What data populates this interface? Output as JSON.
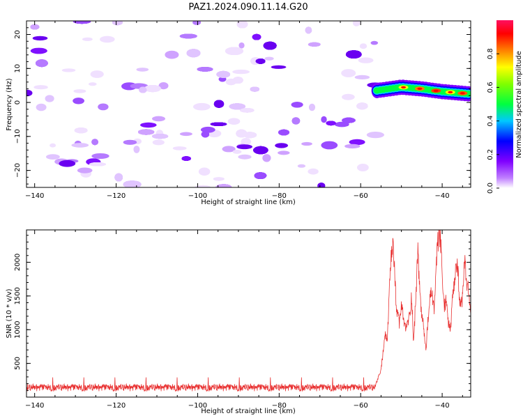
{
  "title": "PAZ1.2024.090.11.14.G20",
  "chart_data": [
    {
      "type": "heatmap",
      "xlabel": "Height of straight line (km)",
      "ylabel": "Frequency (Hz)",
      "xlim": [
        -142,
        -33
      ],
      "ylim": [
        -25,
        24
      ],
      "x_ticks": [
        -140,
        -120,
        -100,
        -80,
        -60,
        -40
      ],
      "y_ticks": [
        -20,
        -10,
        0,
        10,
        20
      ],
      "noise_region_x": [
        -142,
        -56
      ],
      "signal_track": {
        "x": [
          -56,
          -50,
          -45,
          -40,
          -35,
          -33
        ],
        "y": [
          3.5,
          4.5,
          4.0,
          3.2,
          2.7,
          2.5
        ]
      },
      "colorbar": {
        "label": "Normalized spectral amplitude",
        "range": [
          0.0,
          1.0
        ],
        "ticks": [
          0.0,
          0.2,
          0.4,
          0.6,
          0.8
        ],
        "colormap": [
          "#ffffff",
          "#8000ff",
          "#0000ff",
          "#00ffff",
          "#00ff00",
          "#ffff00",
          "#ff8000",
          "#ff0000",
          "#ff0080"
        ]
      }
    },
    {
      "type": "line",
      "xlabel": "Height of straight line (km)",
      "ylabel": "SNR (10 * v/v)",
      "xlim": [
        -142,
        -33
      ],
      "ylim": [
        0,
        2480
      ],
      "x_ticks": [
        -140,
        -120,
        -100,
        -80,
        -60,
        -40
      ],
      "y_ticks": [
        500,
        1000,
        1500,
        2000
      ],
      "line_color": "#e83030",
      "noise_floor": 140,
      "series": [
        {
          "x": [
            -142,
            -56.5,
            -55,
            -54,
            -53.5,
            -53,
            -52.5,
            -52,
            -51.5,
            -51,
            -50.5,
            -50,
            -49,
            -48,
            -47.5,
            -47,
            -46.5,
            -46,
            -45.5,
            -45,
            -44.5,
            -44,
            -43.5,
            -43,
            -42.5,
            -42,
            -41.5,
            -41,
            -40.5,
            -40,
            -39.5,
            -39,
            -38.5,
            -38,
            -37.5,
            -37,
            -36.5,
            -36,
            -35.5,
            -35,
            -34.5,
            -34,
            -33.5,
            -33
          ],
          "values": [
            140,
            150,
            400,
            950,
            800,
            1500,
            2050,
            2270,
            1600,
            1200,
            1100,
            1350,
            1000,
            1200,
            1500,
            800,
            1450,
            2150,
            1600,
            1200,
            1000,
            700,
            1100,
            1450,
            1600,
            1250,
            1900,
            2300,
            2420,
            1800,
            1300,
            1500,
            1100,
            980,
            1400,
            1650,
            2000,
            1750,
            1250,
            1500,
            2020,
            1700,
            1550,
            1200
          ]
        }
      ]
    }
  ]
}
